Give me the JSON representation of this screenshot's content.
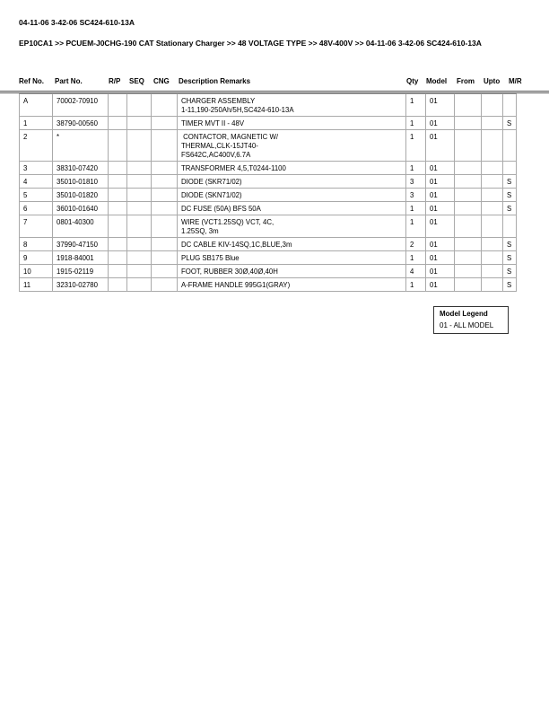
{
  "title": "04-11-06 3-42-06 SC424-610-13A",
  "breadcrumb": "EP10CA1 >> PCUEM-J0CHG-190 CAT Stationary Charger >> 48 VOLTAGE TYPE >> 48V-400V >> 04-11-06 3-42-06 SC424-610-13A",
  "headers": {
    "ref": "Ref No.",
    "part": "Part No.",
    "rp": "R/P",
    "seq": "SEQ",
    "cng": "CNG",
    "desc": "Description Remarks",
    "qty": "Qty",
    "model": "Model",
    "from": "From",
    "upto": "Upto",
    "mr": "M/R"
  },
  "rows": [
    {
      "ref": "A",
      "part": "70002-70910",
      "desc": "CHARGER ASSEMBLY\n1-11,190-250Ah/5H,SC424-610-13A",
      "qty": "1",
      "model": "01",
      "mr": ""
    },
    {
      "ref": "1",
      "part": "38790-00560",
      "desc": "TIMER MVT II - 48V",
      "qty": "1",
      "model": "01",
      "mr": "S"
    },
    {
      "ref": "2",
      "part": "*",
      "desc": " CONTACTOR, MAGNETIC W/\nTHERMAL,CLK-15JT40-\nFS642C,AC400V,6.7A",
      "qty": "1",
      "model": "01",
      "mr": ""
    },
    {
      "ref": "3",
      "part": "38310-07420",
      "desc": "TRANSFORMER 4,5,T0244-1100",
      "qty": "1",
      "model": "01",
      "mr": ""
    },
    {
      "ref": "4",
      "part": "35010-01810",
      "desc": "DIODE (SKR71/02)",
      "qty": "3",
      "model": "01",
      "mr": "S"
    },
    {
      "ref": "5",
      "part": "35010-01820",
      "desc": "DIODE (SKN71/02)",
      "qty": "3",
      "model": "01",
      "mr": "S"
    },
    {
      "ref": "6",
      "part": "36010-01640",
      "desc": "DC FUSE (50A) BFS 50A",
      "qty": "1",
      "model": "01",
      "mr": "S"
    },
    {
      "ref": "7",
      "part": "0801-40300",
      "desc": "WIRE (VCT1.25SQ) VCT, 4C,\n1.25SQ, 3m",
      "qty": "1",
      "model": "01",
      "mr": ""
    },
    {
      "ref": "8",
      "part": "37990-47150",
      "desc": "DC CABLE KIV-14SQ,1C,BLUE,3m",
      "qty": "2",
      "model": "01",
      "mr": "S"
    },
    {
      "ref": "9",
      "part": "1918-84001",
      "desc": "PLUG SB175 Blue",
      "qty": "1",
      "model": "01",
      "mr": "S"
    },
    {
      "ref": "10",
      "part": "1915-02119",
      "desc": "FOOT, RUBBER 30Ø,40Ø,40H",
      "qty": "4",
      "model": "01",
      "mr": "S"
    },
    {
      "ref": "11",
      "part": "32310-02780",
      "desc": "A-FRAME HANDLE 995G1(GRAY)",
      "qty": "1",
      "model": "01",
      "mr": "S"
    }
  ],
  "legend": {
    "title": "Model Legend",
    "entry": "01 - ALL MODEL"
  }
}
